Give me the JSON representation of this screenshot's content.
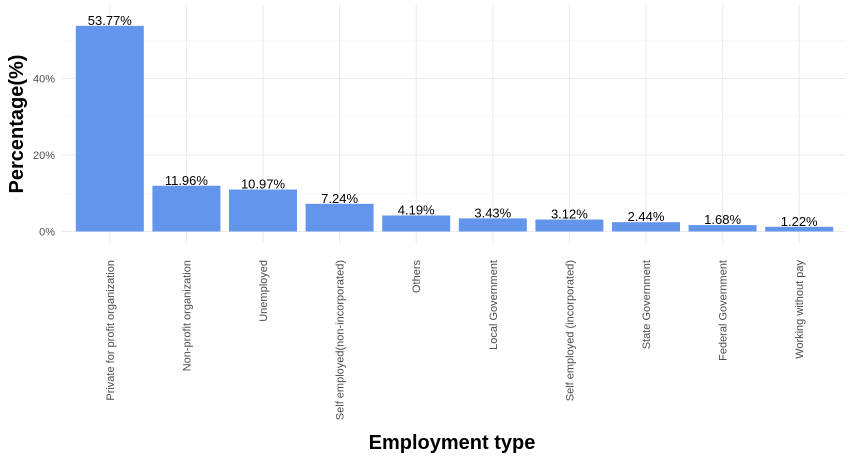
{
  "colors": {
    "bar": "#6495ed",
    "grid": "#ebebeb",
    "text": "#000000",
    "tick": "#4d4d4d"
  },
  "chart_data": {
    "type": "bar",
    "xlabel": "Employment type",
    "ylabel": "Percentage(%)",
    "ylim": [
      0,
      57
    ],
    "yticks": [
      0,
      20,
      40
    ],
    "ytick_labels": [
      "0%",
      "20%",
      "40%"
    ],
    "grid": true,
    "legend": "none",
    "categories": [
      "Private for profit organization",
      "Non-profit organization",
      "Unemployed",
      "Self employed(non-incorporated)",
      "Others",
      "Local Government",
      "Self employed (incorporated)",
      "State Government",
      "Federal Government",
      "Working without pay"
    ],
    "values": [
      53.77,
      11.96,
      10.97,
      7.24,
      4.19,
      3.43,
      3.12,
      2.44,
      1.68,
      1.22
    ],
    "value_labels": [
      "53.77%",
      "11.96%",
      "10.97%",
      "7.24%",
      "4.19%",
      "3.43%",
      "3.12%",
      "2.44%",
      "1.68%",
      "1.22%"
    ]
  }
}
